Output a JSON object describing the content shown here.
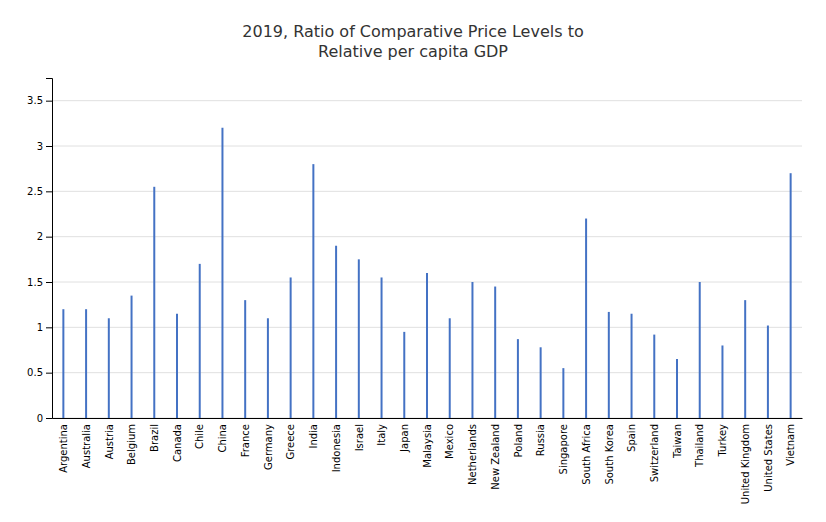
{
  "chart_data": {
    "type": "stem",
    "title": "2019, Ratio of Comparative Price Levels to\nRelative per capita GDP",
    "categories": [
      "Argentina",
      "Australia",
      "Austria",
      "Belgium",
      "Brazil",
      "Canada",
      "Chile",
      "China",
      "France",
      "Germany",
      "Greece",
      "India",
      "Indonesia",
      "Israel",
      "Italy",
      "Japan",
      "Malaysia",
      "Mexico",
      "Netherlands",
      "New Zealand",
      "Poland",
      "Russia",
      "Singapore",
      "South Africa",
      "South Korea",
      "Spain",
      "Switzerland",
      "Taiwan",
      "Thailand",
      "Turkey",
      "United Kingdom",
      "United States",
      "Vietnam"
    ],
    "values": [
      1.2,
      1.2,
      1.1,
      1.35,
      2.55,
      1.15,
      1.7,
      3.2,
      1.3,
      1.1,
      1.55,
      2.8,
      1.9,
      1.75,
      1.55,
      0.95,
      1.6,
      1.1,
      1.5,
      1.45,
      0.87,
      0.78,
      0.55,
      2.2,
      1.17,
      1.15,
      0.92,
      0.65,
      1.5,
      0.8,
      1.3,
      1.02,
      2.7
    ],
    "color": "#4472C4",
    "ylim": [
      0,
      3.75
    ],
    "yticks": [
      0,
      0.5,
      1,
      1.5,
      2,
      2.5,
      3,
      3.5
    ],
    "grid": true
  }
}
